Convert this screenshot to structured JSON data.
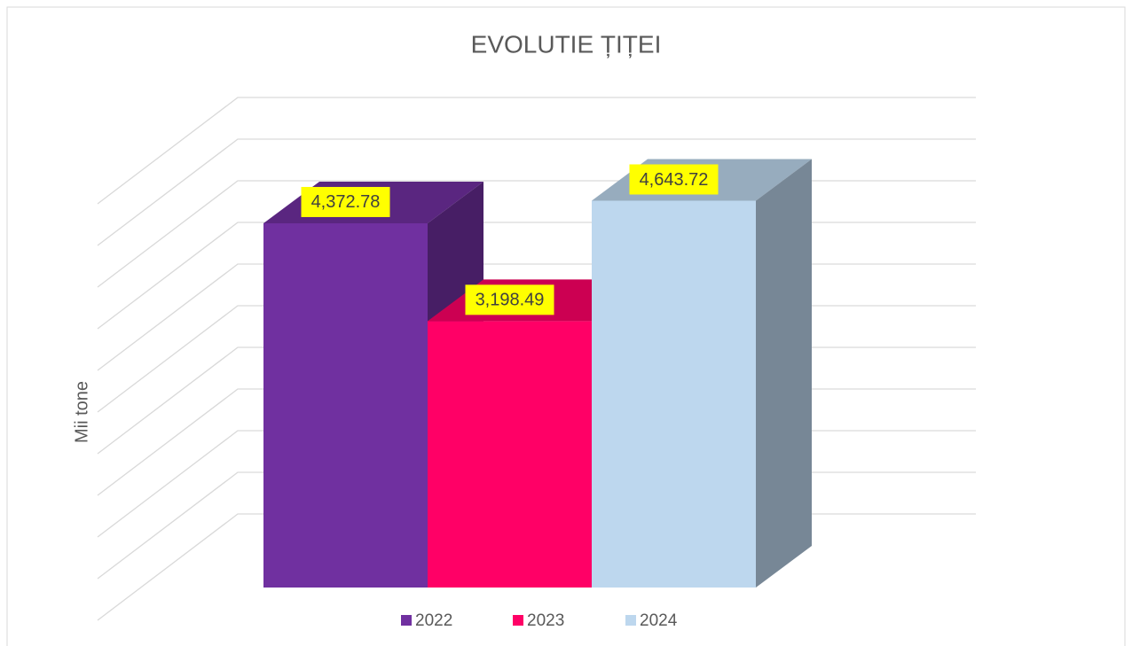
{
  "chart_data": {
    "type": "bar3d",
    "title": "EVOLUTIE ȚIȚEI",
    "y_label": "Mii tone",
    "categories": [
      "2022",
      "2023",
      "2024"
    ],
    "values": [
      4372.78,
      3198.49,
      4643.72
    ],
    "value_labels": [
      "4,372.78",
      "3,198.49",
      "4,643.72"
    ],
    "colors": [
      "#7030a0",
      "#ff0066",
      "#bdd7ee"
    ],
    "ylim": [
      0,
      5000
    ],
    "yticks": [
      0,
      500,
      1000,
      1500,
      2000,
      2500,
      3000,
      3500,
      4000,
      4500,
      5000
    ],
    "grid": true
  }
}
